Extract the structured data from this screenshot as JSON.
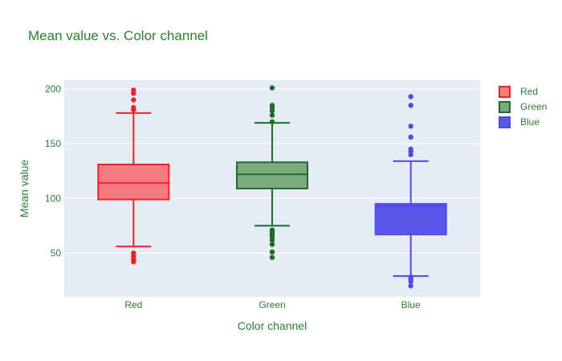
{
  "chart_data": {
    "type": "box",
    "title": "Mean value vs. Color channel",
    "xlabel": "Color channel",
    "ylabel": "Mean value",
    "ylim": [
      10,
      208
    ],
    "yticks": [
      50,
      100,
      150,
      200
    ],
    "categories": [
      "Red",
      "Green",
      "Blue"
    ],
    "grid": true,
    "legend_position": "top-right",
    "text_color": "#2e7d32",
    "plot_bg": "#e5ecf6",
    "series": [
      {
        "name": "Red",
        "line_color": "#e8252c",
        "fill_color": "#f47b80",
        "whisker_low": 56,
        "q1": 99,
        "median": 114,
        "q3": 131,
        "whisker_high": 178,
        "outliers": [
          42,
          44,
          47,
          50,
          181,
          183,
          190,
          196,
          199
        ]
      },
      {
        "name": "Green",
        "line_color": "#1f6b27",
        "fill_color": "#7aaa7e",
        "whisker_low": 75,
        "q1": 109,
        "median": 122,
        "q3": 133,
        "whisker_high": 169,
        "outliers": [
          46,
          51,
          58,
          62,
          65,
          67,
          69,
          71,
          170,
          176,
          180,
          183,
          185,
          201
        ]
      },
      {
        "name": "Blue",
        "line_color": "#5249e6",
        "fill_color": "#5b55ea",
        "whisker_low": 29,
        "q1": 67,
        "median": 93,
        "q3": 95,
        "whisker_high": 134,
        "outliers": [
          20,
          24,
          26,
          28,
          140,
          143,
          145,
          156,
          166,
          185,
          193
        ]
      }
    ]
  }
}
